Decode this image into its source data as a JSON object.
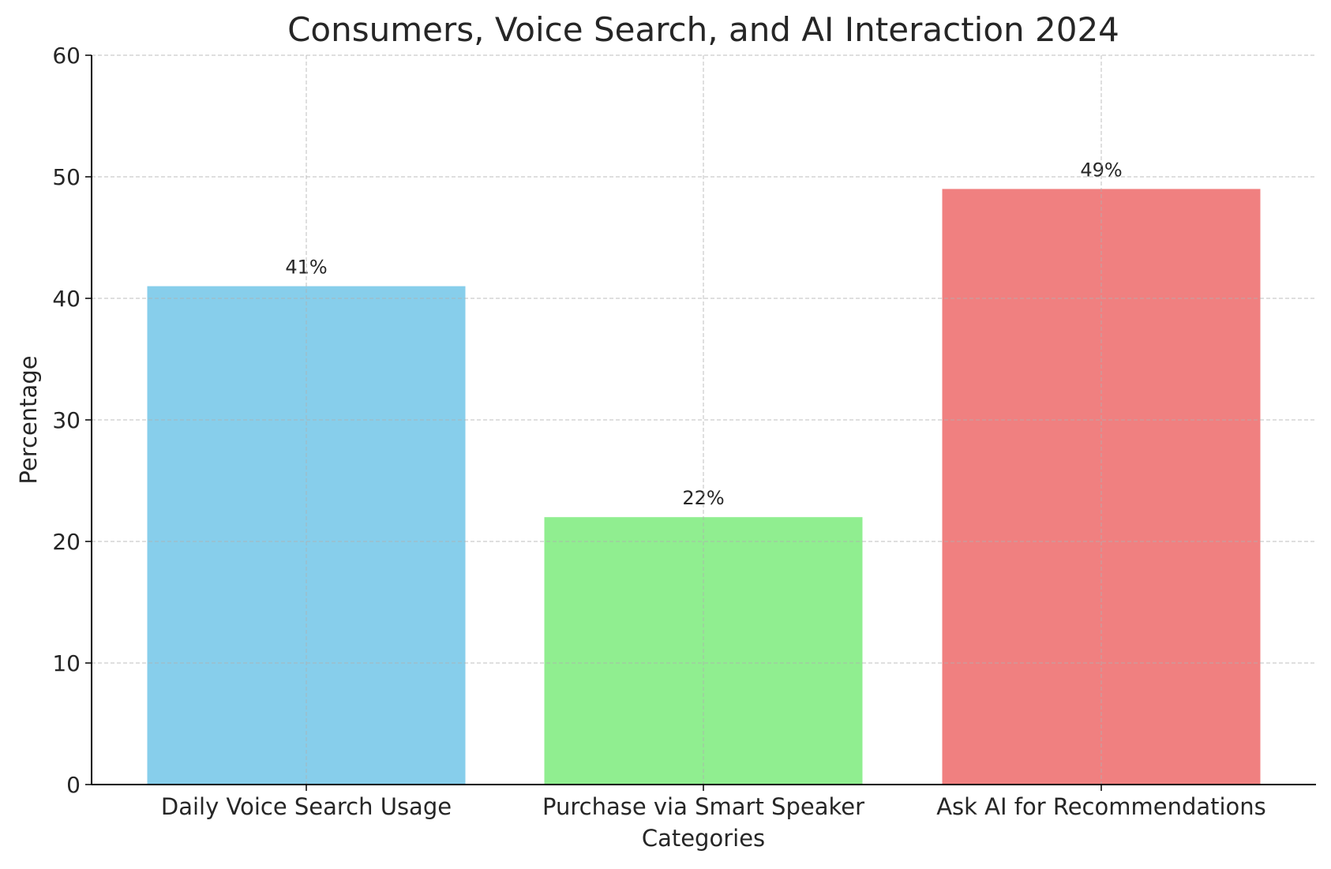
{
  "chart_data": {
    "type": "bar",
    "title": "Consumers, Voice Search, and AI Interaction 2024",
    "xlabel": "Categories",
    "ylabel": "Percentage",
    "categories": [
      "Daily Voice Search Usage",
      "Purchase via Smart Speaker",
      "Ask AI for Recommendations"
    ],
    "values": [
      41,
      22,
      49
    ],
    "data_labels": [
      "41%",
      "22%",
      "49%"
    ],
    "colors": [
      "#87ceeb",
      "#90ee90",
      "#f08080"
    ],
    "ylim": [
      0,
      60
    ],
    "yticks": [
      0,
      10,
      20,
      30,
      40,
      50,
      60
    ],
    "grid": true,
    "grid_style": "dashed"
  }
}
